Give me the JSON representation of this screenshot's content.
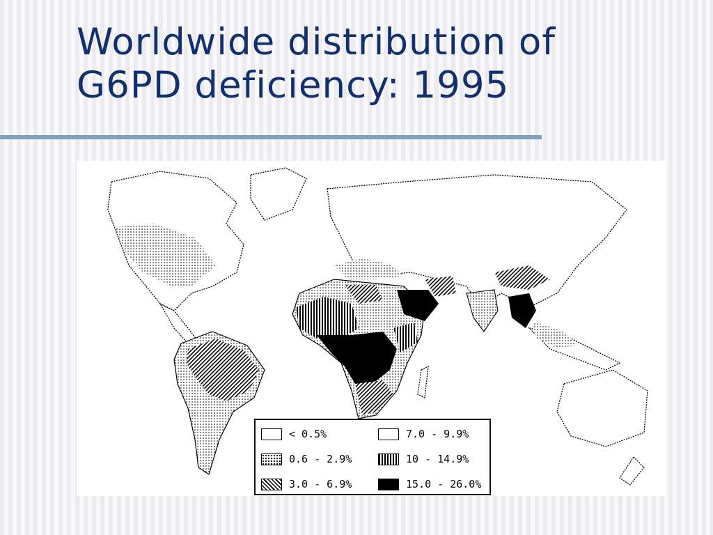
{
  "slide": {
    "title_line1": "Worldwide distribution of",
    "title_line2": "G6PD deficiency: 1995",
    "rule_color": "#7f9ec0",
    "title_color": "#12306e"
  },
  "map": {
    "legend": [
      {
        "label": "< 0.5%",
        "pattern": "blank"
      },
      {
        "label": "0.6 - 2.9%",
        "pattern": "dots"
      },
      {
        "label": "3.0 - 6.9%",
        "pattern": "diagonal-hatch"
      },
      {
        "label": "7.0 - 9.9%",
        "pattern": "blank"
      },
      {
        "label": "10 - 14.9%",
        "pattern": "vertical-hatch"
      },
      {
        "label": "15.0 - 26.0%",
        "pattern": "solid-black"
      }
    ]
  }
}
